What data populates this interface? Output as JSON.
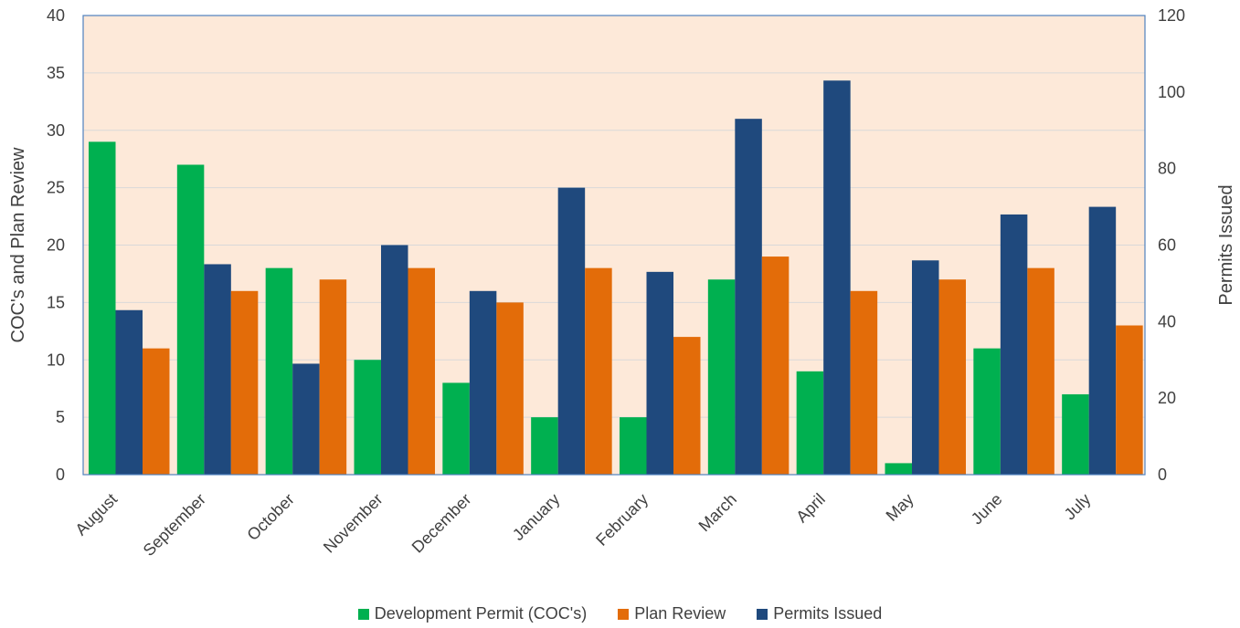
{
  "chart_data": {
    "type": "bar",
    "categories": [
      "August",
      "September",
      "October",
      "November",
      "December",
      "January",
      "February",
      "March",
      "April",
      "May",
      "June",
      "July"
    ],
    "series": [
      {
        "name": "Development Permit (COC's)",
        "axis": "left",
        "color": "#00b050",
        "values": [
          29,
          27,
          18,
          10,
          8,
          5,
          5,
          17,
          9,
          1,
          11,
          7
        ]
      },
      {
        "name": "Permits Issued",
        "axis": "right",
        "color": "#1f497d",
        "values": [
          43,
          55,
          29,
          60,
          48,
          75,
          53,
          93,
          103,
          56,
          68,
          70
        ]
      },
      {
        "name": "Plan Review",
        "axis": "left",
        "color": "#e36c09",
        "values": [
          11,
          16,
          17,
          18,
          15,
          18,
          12,
          19,
          16,
          17,
          18,
          13
        ]
      }
    ],
    "ylabel": "COC's and Plan Review",
    "y2label": "Permits Issued",
    "ylim": [
      0,
      40
    ],
    "y2lim": [
      0,
      120
    ],
    "yticks": [
      0,
      5,
      10,
      15,
      20,
      25,
      30,
      35,
      40
    ],
    "y2ticks": [
      0,
      20,
      40,
      60,
      80,
      100,
      120
    ],
    "plot_background": "#fde9d9",
    "gridlines": true,
    "legend_position": "bottom"
  },
  "legend": {
    "items": [
      {
        "label": "Development Permit (COC's)",
        "color": "#00b050"
      },
      {
        "label": "Plan Review",
        "color": "#e36c09"
      },
      {
        "label": "Permits Issued",
        "color": "#1f497d"
      }
    ]
  }
}
